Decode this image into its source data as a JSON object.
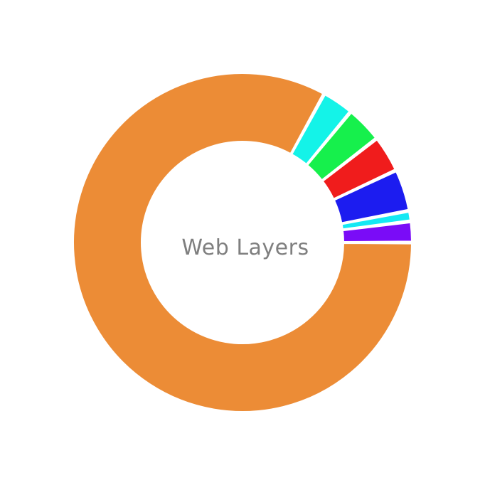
{
  "chart_data": {
    "type": "pie",
    "subtype": "donut",
    "center_label": "Web Layers",
    "start_angle_deg": 0,
    "direction": "counterclockwise",
    "slices": [
      {
        "label": "",
        "value": 83.0,
        "color": "#EC8C36"
      },
      {
        "label": "",
        "value": 3.0,
        "color": "#14F3E8"
      },
      {
        "label": "",
        "value": 3.5,
        "color": "#16F04C"
      },
      {
        "label": "",
        "value": 3.5,
        "color": "#F01C1C"
      },
      {
        "label": "",
        "value": 4.0,
        "color": "#1C1CF0"
      },
      {
        "label": "",
        "value": 1.0,
        "color": "#14E8F3"
      },
      {
        "label": "",
        "value": 2.0,
        "color": "#7A0CF7"
      }
    ]
  }
}
